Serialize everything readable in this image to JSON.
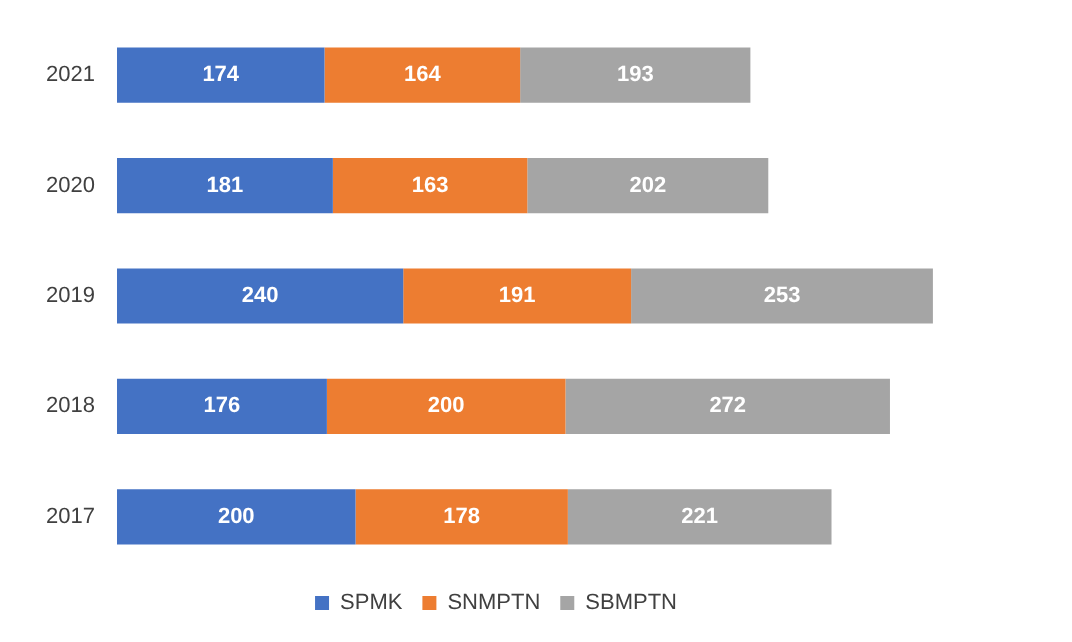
{
  "chart_data": {
    "type": "bar",
    "orientation": "horizontal",
    "stacked": true,
    "categories": [
      "2021",
      "2020",
      "2019",
      "2018",
      "2017"
    ],
    "series": [
      {
        "name": "SPMK",
        "color": "#4472c4",
        "values": [
          174,
          181,
          240,
          176,
          200
        ]
      },
      {
        "name": "SNMPTN",
        "color": "#ed7d31",
        "values": [
          164,
          163,
          191,
          200,
          178
        ]
      },
      {
        "name": "SBMPTN",
        "color": "#a5a5a5",
        "values": [
          193,
          202,
          253,
          272,
          221
        ]
      }
    ],
    "data_labels": true,
    "legend": "bottom",
    "grid": false,
    "tick_labels": "y"
  }
}
